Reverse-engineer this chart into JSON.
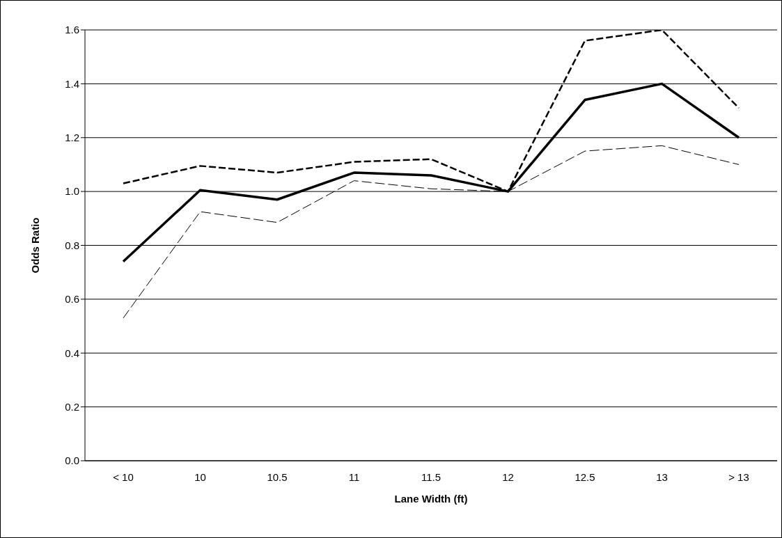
{
  "chart_data": {
    "type": "line",
    "xlabel": "Lane Width (ft)",
    "ylabel": "Odds Ratio",
    "categories": [
      "< 10",
      "10",
      "10.5",
      "11",
      "11.5",
      "12",
      "12.5",
      "13",
      "> 13"
    ],
    "series": [
      {
        "color": "#000000",
        "line_style": "solid",
        "values": [
          0.74,
          1.005,
          0.97,
          1.07,
          1.06,
          1.0,
          1.34,
          1.4,
          1.2
        ]
      },
      {
        "color": "#000000",
        "line_style": "dashed",
        "values": [
          1.03,
          1.095,
          1.07,
          1.11,
          1.12,
          1.0,
          1.56,
          1.6,
          1.31
        ]
      },
      {
        "color": "#000000",
        "line_style": "dashed",
        "values": [
          0.53,
          0.925,
          0.885,
          1.04,
          1.01,
          1.0,
          1.15,
          1.17,
          1.1
        ]
      }
    ],
    "ylim": [
      0,
      1.6
    ],
    "yticks": [
      {
        "value": 0,
        "label": "0.0"
      },
      {
        "value": 0.2,
        "label": "0.2"
      },
      {
        "value": 0.4,
        "label": "0.4"
      },
      {
        "value": 0.6,
        "label": "0.6"
      },
      {
        "value": 0.8,
        "label": "0.8"
      },
      {
        "value": 1,
        "label": "1.0"
      },
      {
        "value": 1.2,
        "label": "1.2"
      },
      {
        "value": 1.4,
        "label": "1.4"
      },
      {
        "value": 1.6,
        "label": "1.6"
      }
    ],
    "grid": "y",
    "legend": false,
    "marker": "none"
  }
}
